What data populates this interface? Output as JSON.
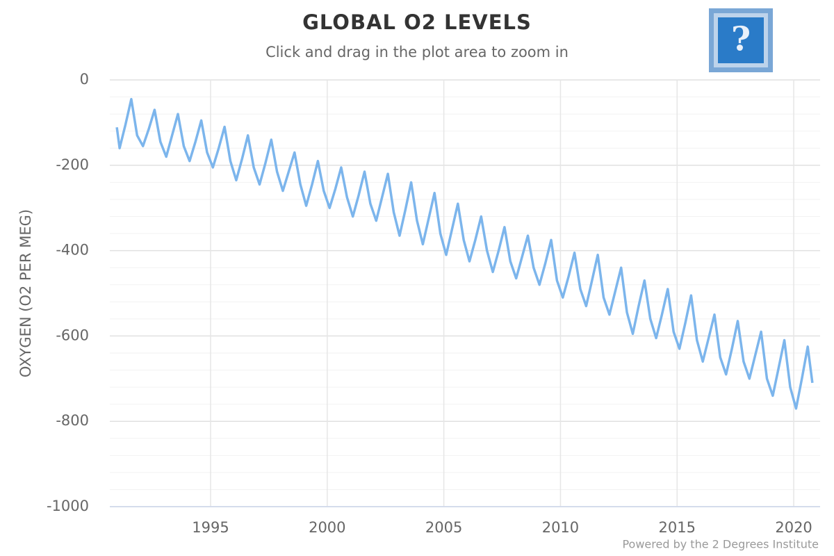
{
  "chart_data": {
    "type": "line",
    "title": "GLOBAL O2 LEVELS",
    "subtitle": "Click and drag in the plot area to zoom in",
    "y_label": "OXYGEN (O2 PER MEG)",
    "credit": "Powered by the 2 Degrees Institute",
    "help_button": "?",
    "xlim": [
      1990.68,
      2021.13
    ],
    "xticks": [
      1995,
      2000,
      2005,
      2010,
      2015,
      2020
    ],
    "ylim": [
      -1000,
      0
    ],
    "yticks": [
      0,
      -200,
      -400,
      -600,
      -800,
      -1000
    ],
    "minor_yticks": [
      -40,
      -80,
      -120,
      -160,
      -240,
      -280,
      -320,
      -360,
      -440,
      -480,
      -520,
      -560,
      -640,
      -680,
      -720,
      -760,
      -840,
      -880,
      -920,
      -960
    ],
    "grid": true,
    "series": [
      {
        "name": "Oxygen",
        "color": "#7cb5ec",
        "x": [
          1990.98,
          1991.1,
          1991.35,
          1991.6,
          1991.85,
          1992.1,
          1992.35,
          1992.6,
          1992.85,
          1993.1,
          1993.35,
          1993.6,
          1993.85,
          1994.1,
          1994.35,
          1994.6,
          1994.85,
          1995.1,
          1995.35,
          1995.6,
          1995.85,
          1996.1,
          1996.35,
          1996.6,
          1996.85,
          1997.1,
          1997.35,
          1997.6,
          1997.85,
          1998.1,
          1998.35,
          1998.6,
          1998.85,
          1999.1,
          1999.35,
          1999.6,
          1999.85,
          2000.1,
          2000.35,
          2000.6,
          2000.85,
          2001.1,
          2001.35,
          2001.6,
          2001.85,
          2002.1,
          2002.35,
          2002.6,
          2002.85,
          2003.1,
          2003.35,
          2003.6,
          2003.85,
          2004.1,
          2004.35,
          2004.6,
          2004.85,
          2005.1,
          2005.35,
          2005.6,
          2005.85,
          2006.1,
          2006.35,
          2006.6,
          2006.85,
          2007.1,
          2007.35,
          2007.6,
          2007.85,
          2008.1,
          2008.35,
          2008.6,
          2008.85,
          2009.1,
          2009.35,
          2009.6,
          2009.85,
          2010.1,
          2010.35,
          2010.6,
          2010.85,
          2011.1,
          2011.35,
          2011.6,
          2011.85,
          2012.1,
          2012.35,
          2012.6,
          2012.85,
          2013.1,
          2013.35,
          2013.6,
          2013.85,
          2014.1,
          2014.35,
          2014.6,
          2014.85,
          2015.1,
          2015.35,
          2015.6,
          2015.85,
          2016.1,
          2016.35,
          2016.6,
          2016.85,
          2017.1,
          2017.35,
          2017.6,
          2017.85,
          2018.1,
          2018.35,
          2018.6,
          2018.85,
          2019.1,
          2019.35,
          2019.6,
          2019.85,
          2020.1,
          2020.35,
          2020.6,
          2020.8
        ],
        "values": [
          -111,
          -160,
          -105,
          -45,
          -130,
          -155,
          -115,
          -70,
          -145,
          -180,
          -130,
          -80,
          -155,
          -190,
          -145,
          -95,
          -170,
          -205,
          -160,
          -110,
          -190,
          -235,
          -185,
          -130,
          -205,
          -245,
          -195,
          -140,
          -215,
          -260,
          -215,
          -170,
          -245,
          -295,
          -245,
          -190,
          -260,
          -300,
          -255,
          -205,
          -275,
          -320,
          -270,
          -215,
          -290,
          -330,
          -275,
          -220,
          -310,
          -365,
          -305,
          -240,
          -330,
          -385,
          -325,
          -265,
          -360,
          -410,
          -350,
          -290,
          -375,
          -425,
          -375,
          -320,
          -400,
          -450,
          -400,
          -345,
          -425,
          -465,
          -415,
          -365,
          -440,
          -480,
          -430,
          -375,
          -470,
          -510,
          -460,
          -405,
          -490,
          -530,
          -470,
          -410,
          -510,
          -550,
          -495,
          -440,
          -545,
          -595,
          -530,
          -470,
          -560,
          -605,
          -550,
          -490,
          -590,
          -630,
          -570,
          -505,
          -610,
          -660,
          -605,
          -550,
          -650,
          -690,
          -630,
          -565,
          -660,
          -700,
          -645,
          -590,
          -700,
          -740,
          -675,
          -610,
          -720,
          -770,
          -700,
          -625,
          -710
        ]
      }
    ]
  }
}
